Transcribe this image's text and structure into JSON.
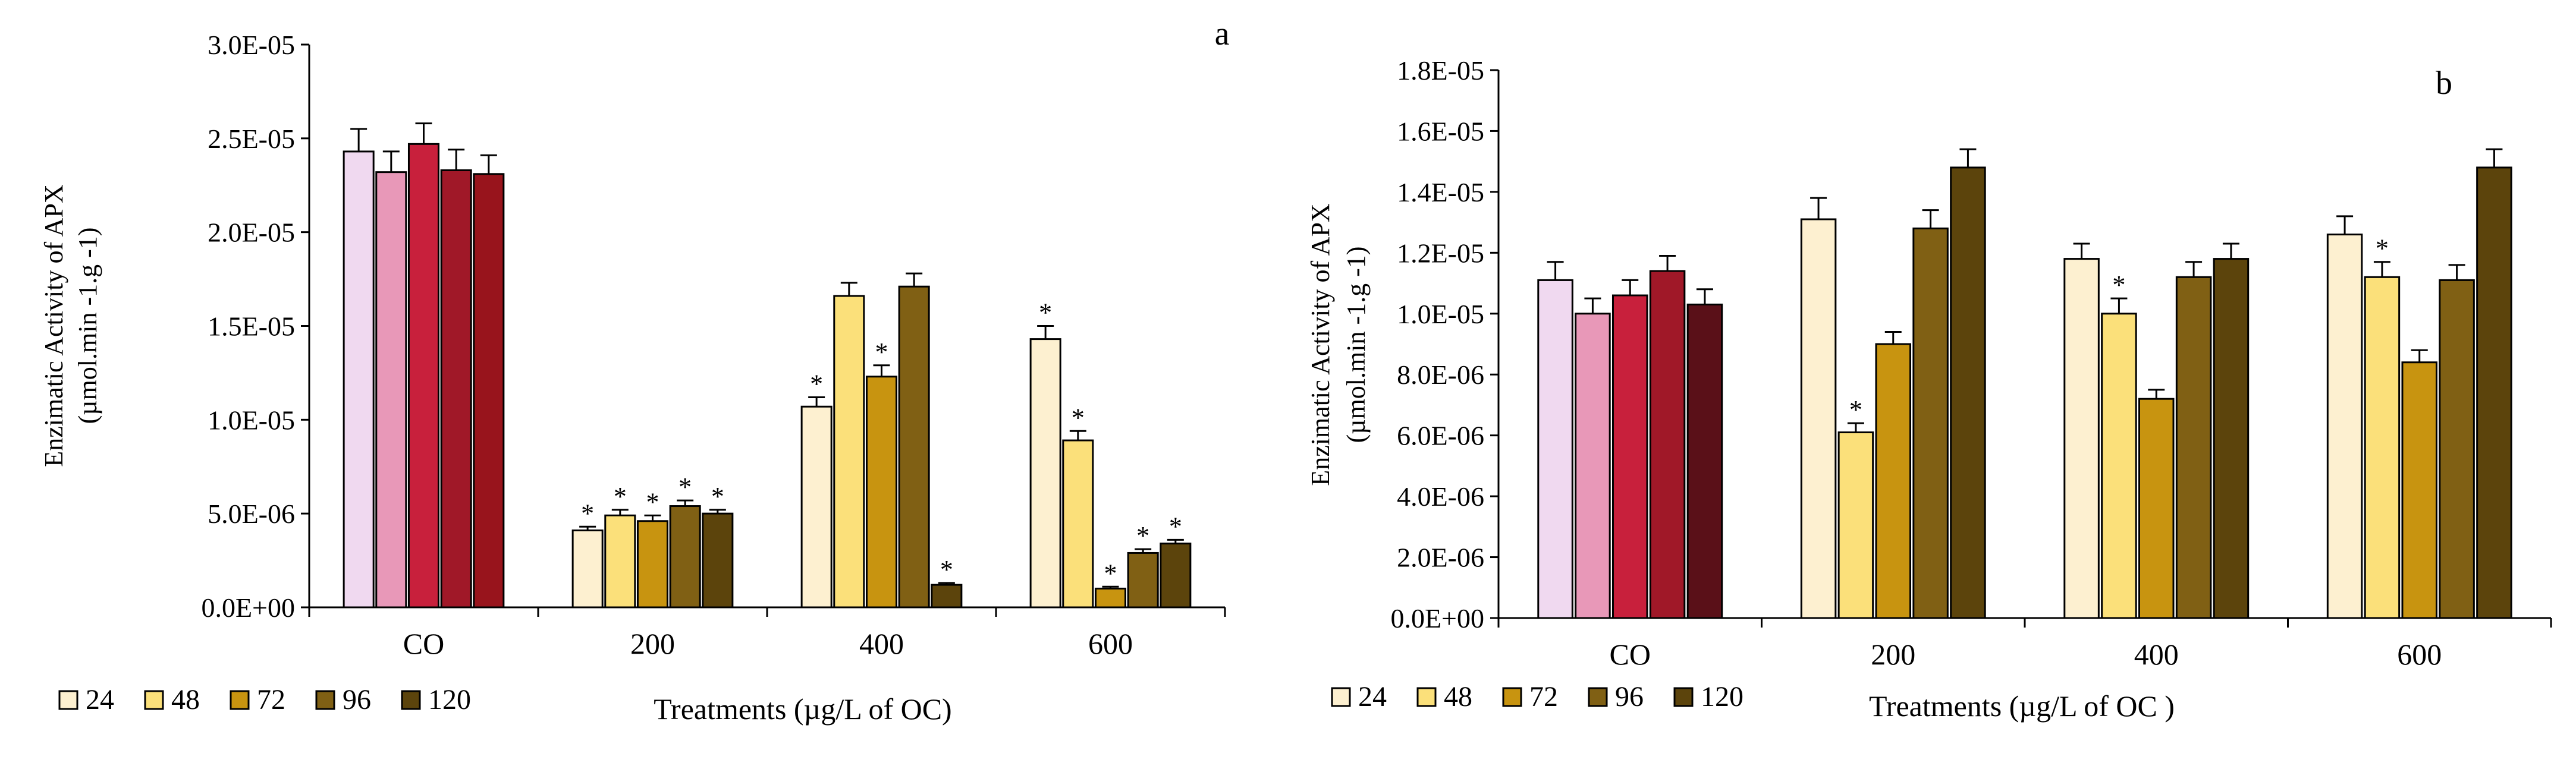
{
  "chart_data": [
    {
      "type": "bar",
      "panel_label": "a",
      "title": "",
      "ylabel_line1": "Enzimatic Activity of APX",
      "ylabel_line2": "(µmol.min -1.g -1)",
      "xlabel": "Treatments (µg/L of OC)",
      "ylim": [
        0,
        3e-05
      ],
      "yticks": [
        "0.0E+00",
        "5.0E-06",
        "1.0E-05",
        "1.5E-05",
        "2.0E-05",
        "2.5E-05",
        "3.0E-05"
      ],
      "categories": [
        "CO",
        "200",
        "400",
        "600"
      ],
      "legend_position": "bottom-left",
      "series": [
        {
          "name": "24",
          "values": [
            2.43e-05,
            4.1e-06,
            1.07e-05,
            1.43e-05
          ],
          "errors": [
            1.2e-06,
            2e-07,
            5e-07,
            7e-07
          ],
          "significant": [
            false,
            true,
            true,
            true
          ]
        },
        {
          "name": "48",
          "values": [
            2.32e-05,
            4.9e-06,
            1.66e-05,
            8.9e-06
          ],
          "errors": [
            1.1e-06,
            3e-07,
            7e-07,
            5e-07
          ],
          "significant": [
            false,
            true,
            false,
            true
          ]
        },
        {
          "name": "72",
          "values": [
            2.47e-05,
            4.6e-06,
            1.23e-05,
            1e-06
          ],
          "errors": [
            1.1e-06,
            3e-07,
            6e-07,
            1e-07
          ],
          "significant": [
            false,
            true,
            true,
            true
          ]
        },
        {
          "name": "96",
          "values": [
            2.33e-05,
            5.4e-06,
            1.71e-05,
            2.9e-06
          ],
          "errors": [
            1.1e-06,
            3e-07,
            7e-07,
            2e-07
          ],
          "significant": [
            false,
            true,
            false,
            true
          ]
        },
        {
          "name": "120",
          "values": [
            2.31e-05,
            5e-06,
            1.2e-06,
            3.4e-06
          ],
          "errors": [
            1e-06,
            2e-07,
            1e-07,
            2e-07
          ],
          "significant": [
            false,
            true,
            true,
            true
          ]
        }
      ],
      "co_colors": [
        "#f0d9f0",
        "#e898b8",
        "#c8203c",
        "#a01828",
        "#98141c"
      ],
      "treatment_colors": [
        "#fdf0d0",
        "#fbe07a",
        "#c89410",
        "#806014",
        "#5c440c"
      ]
    },
    {
      "type": "bar",
      "panel_label": "b",
      "title": "",
      "ylabel_line1": "Enzimatic Activity of APX",
      "ylabel_line2": "(µmol.min -1.g -1)",
      "xlabel": "Treatments (µg/L of OC )",
      "ylim": [
        0,
        1.8e-05
      ],
      "yticks": [
        "0.0E+00",
        "2.0E-06",
        "4.0E-06",
        "6.0E-06",
        "8.0E-06",
        "1.0E-05",
        "1.2E-05",
        "1.4E-05",
        "1.6E-05",
        "1.8E-05"
      ],
      "categories": [
        "CO",
        "200",
        "400",
        "600"
      ],
      "legend_position": "bottom-left",
      "series": [
        {
          "name": "24",
          "values": [
            1.11e-05,
            1.31e-05,
            1.18e-05,
            1.26e-05
          ],
          "errors": [
            6e-07,
            7e-07,
            5e-07,
            6e-07
          ],
          "significant": [
            false,
            false,
            false,
            false
          ]
        },
        {
          "name": "48",
          "values": [
            1e-05,
            6.1e-06,
            1e-05,
            1.12e-05
          ],
          "errors": [
            5e-07,
            3e-07,
            5e-07,
            5e-07
          ],
          "significant": [
            false,
            true,
            true,
            true
          ]
        },
        {
          "name": "72",
          "values": [
            1.06e-05,
            9e-06,
            7.2e-06,
            8.4e-06
          ],
          "errors": [
            5e-07,
            4e-07,
            3e-07,
            4e-07
          ],
          "significant": [
            false,
            false,
            false,
            false
          ]
        },
        {
          "name": "96",
          "values": [
            1.14e-05,
            1.28e-05,
            1.12e-05,
            1.11e-05
          ],
          "errors": [
            5e-07,
            6e-07,
            5e-07,
            5e-07
          ],
          "significant": [
            false,
            false,
            false,
            false
          ]
        },
        {
          "name": "120",
          "values": [
            1.03e-05,
            1.48e-05,
            1.18e-05,
            1.48e-05
          ],
          "errors": [
            5e-07,
            6e-07,
            5e-07,
            6e-07
          ],
          "significant": [
            false,
            false,
            false,
            false
          ]
        }
      ],
      "co_colors": [
        "#f0d9f0",
        "#e898b8",
        "#c8203c",
        "#a01828",
        "#5a1018"
      ],
      "treatment_colors": [
        "#fdf0d0",
        "#fbe07a",
        "#c89410",
        "#806014",
        "#5c440c"
      ]
    }
  ]
}
